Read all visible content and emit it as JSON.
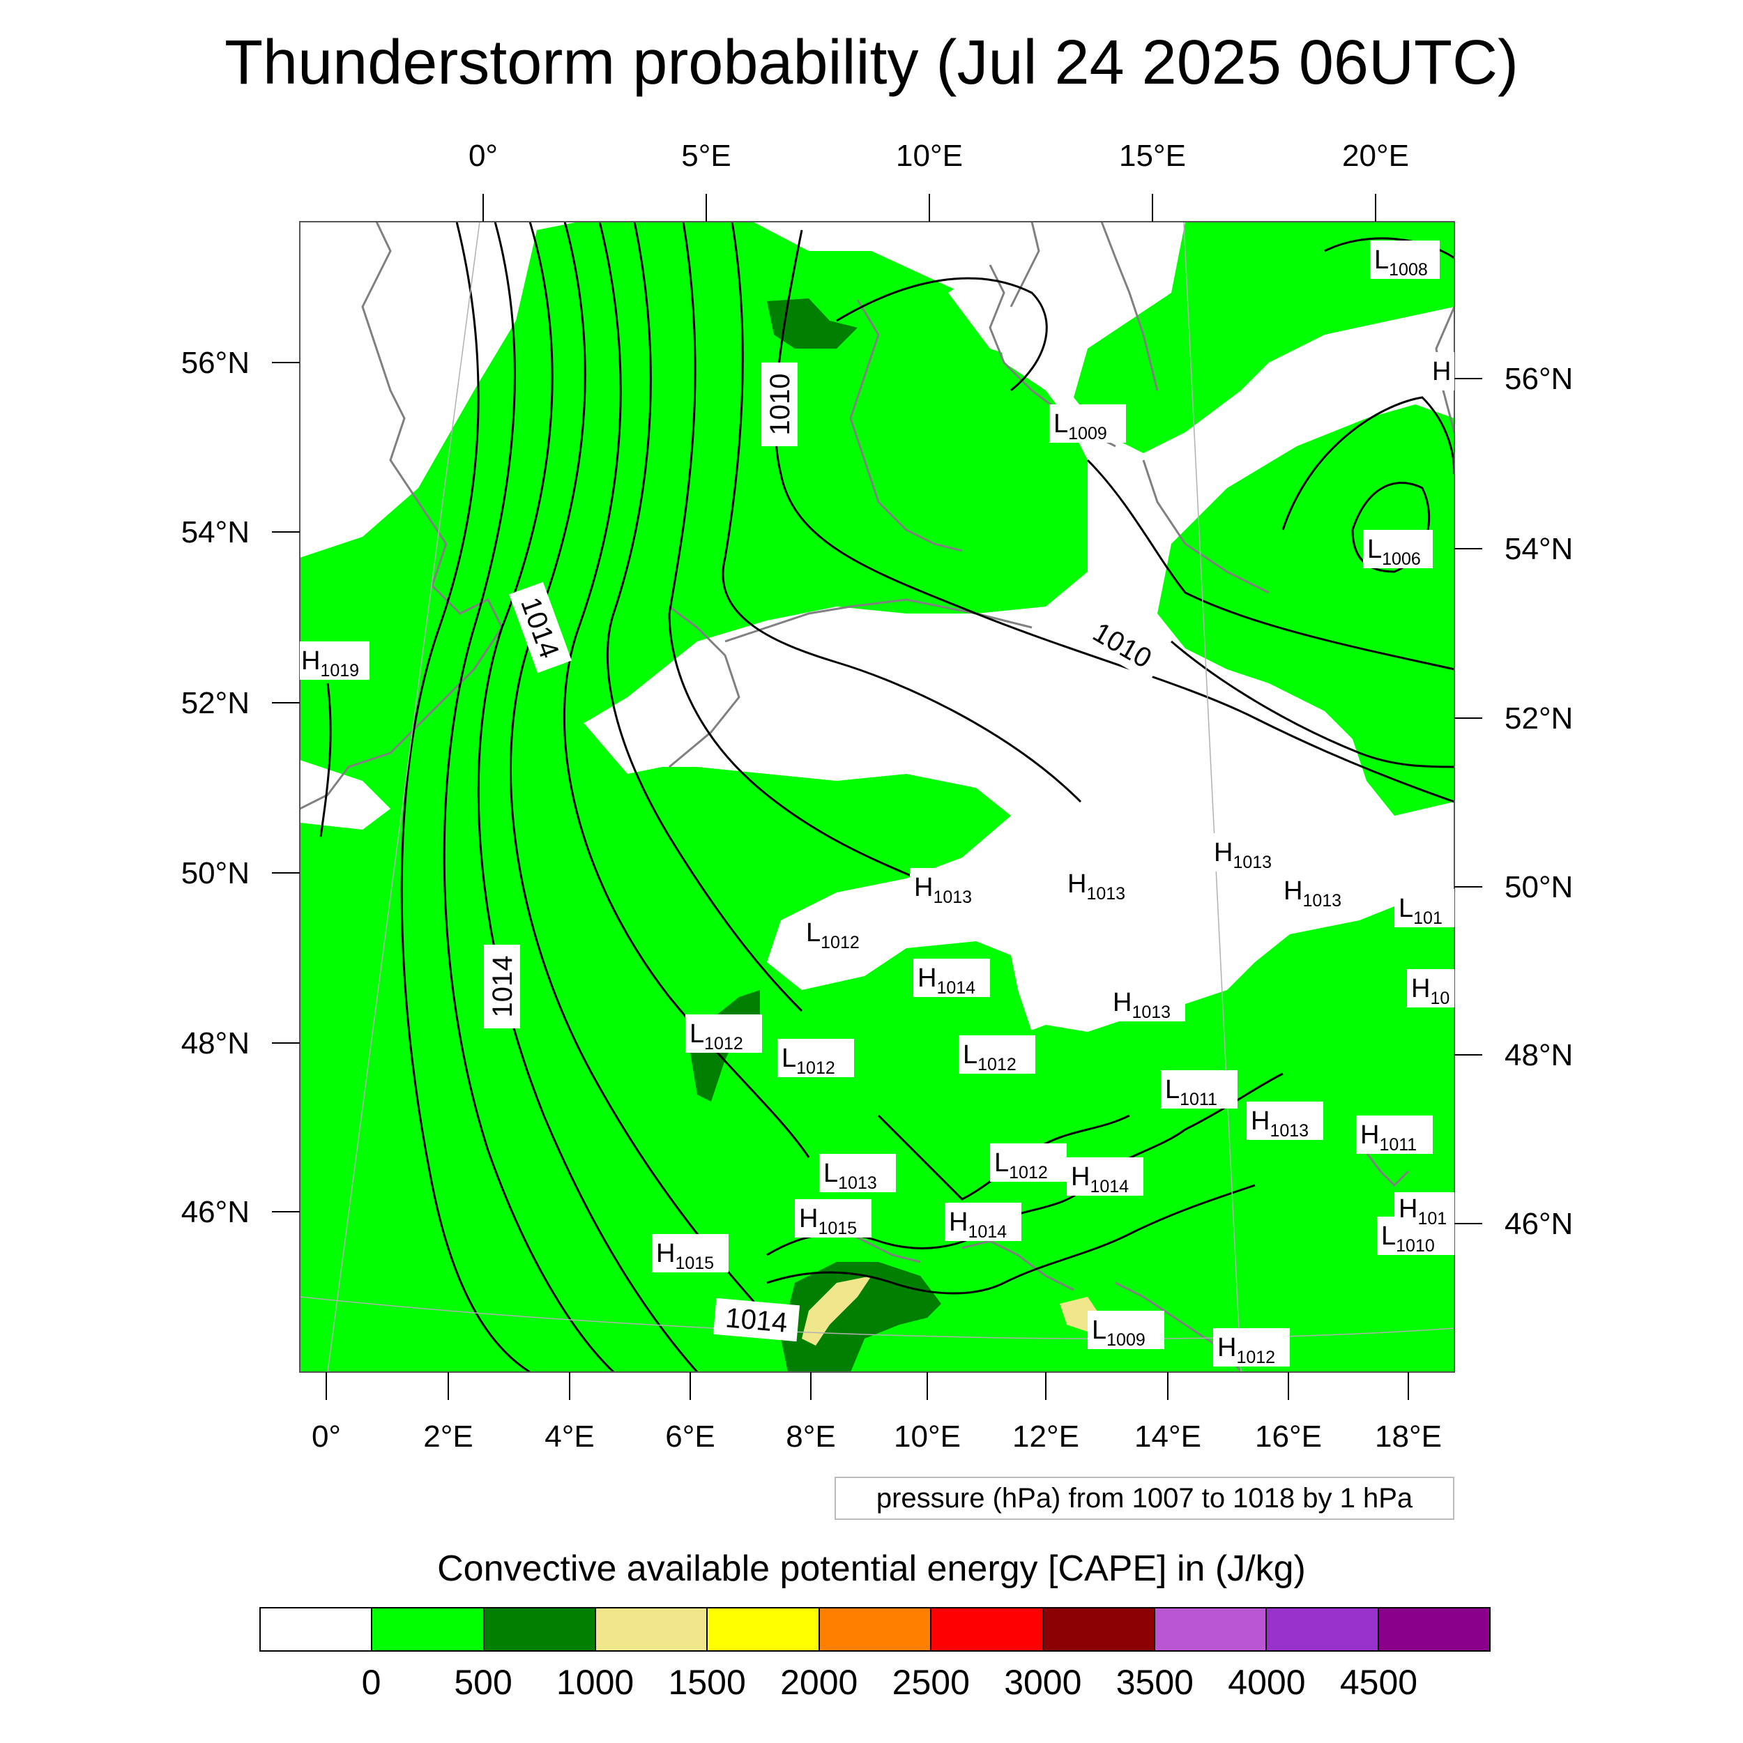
{
  "title": "Thunderstorm probability (Jul 24 2025 06UTC)",
  "top_lon_labels": [
    "0°",
    "5°E",
    "10°E",
    "15°E",
    "20°E"
  ],
  "bottom_lon_labels": [
    "0°",
    "2°E",
    "4°E",
    "6°E",
    "8°E",
    "10°E",
    "12°E",
    "14°E",
    "16°E",
    "18°E"
  ],
  "left_lat_labels": [
    "56°N",
    "54°N",
    "52°N",
    "50°N",
    "48°N",
    "46°N"
  ],
  "right_lat_labels": [
    "56°N",
    "54°N",
    "52°N",
    "50°N",
    "48°N",
    "46°N"
  ],
  "contour_labels": [
    "1010",
    "1014",
    "1010",
    "1014",
    "1014"
  ],
  "pressure_systems": [
    {
      "type": "L",
      "value": "1008"
    },
    {
      "type": "H",
      "value": ""
    },
    {
      "type": "L",
      "value": "1009"
    },
    {
      "type": "L",
      "value": "1006"
    },
    {
      "type": "H",
      "value": "1019"
    },
    {
      "type": "H",
      "value": "1013"
    },
    {
      "type": "H",
      "value": "1013"
    },
    {
      "type": "H",
      "value": "1013"
    },
    {
      "type": "H",
      "value": "1013"
    },
    {
      "type": "L",
      "value": "1012"
    },
    {
      "type": "H",
      "value": "1014"
    },
    {
      "type": "L",
      "value": "1012"
    },
    {
      "type": "L",
      "value": "1012"
    },
    {
      "type": "L",
      "value": "1012"
    },
    {
      "type": "H",
      "value": "1013"
    },
    {
      "type": "L",
      "value": "1011"
    },
    {
      "type": "H",
      "value": "1013"
    },
    {
      "type": "H",
      "value": "1011"
    },
    {
      "type": "L",
      "value": "1013"
    },
    {
      "type": "L",
      "value": "1012"
    },
    {
      "type": "H",
      "value": "1014"
    },
    {
      "type": "H",
      "value": "1015"
    },
    {
      "type": "H",
      "value": "1014"
    },
    {
      "type": "H",
      "value": "1015"
    },
    {
      "type": "L",
      "value": "1009"
    },
    {
      "type": "H",
      "value": "1012"
    },
    {
      "type": "L",
      "value": "1010"
    },
    {
      "type": "H",
      "value": "101"
    },
    {
      "type": "L",
      "value": "101"
    },
    {
      "type": "H",
      "value": "10"
    }
  ],
  "pressure_note": "pressure (hPa) from 1007 to 1018 by 1 hPa",
  "legend_title": "Convective available potential energy [CAPE] in (J/kg)",
  "colorbar_colors": [
    "#ffffff",
    "#00ff00",
    "#007f00",
    "#f0e68c",
    "#ffff00",
    "#ff8000",
    "#ff0000",
    "#8b0000",
    "#ba55d3",
    "#9932cc",
    "#8b008b"
  ],
  "colorbar_ticks": [
    "0",
    "500",
    "1000",
    "1500",
    "2000",
    "2500",
    "3000",
    "3500",
    "4000",
    "4500"
  ]
}
